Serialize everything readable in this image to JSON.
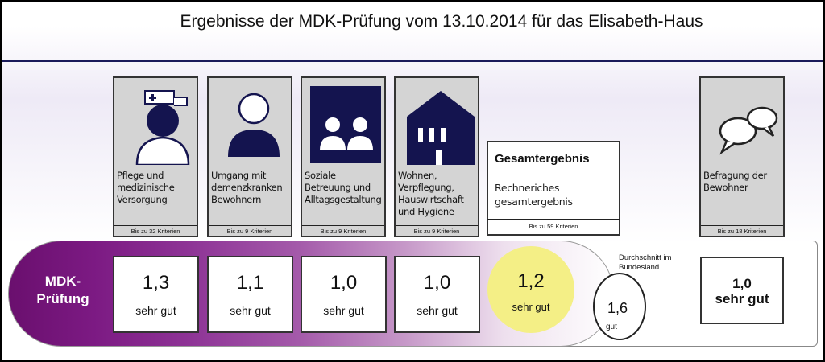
{
  "title": "Ergebnisse der MDK-Prüfung vom 13.10.2014 für das Elisabeth-Haus",
  "band_label": "MDK-\nPrüfung",
  "categories": [
    {
      "label": "Pflege und medizinische Versorgung",
      "criteria": "Bis zu 32 Kriterien",
      "icon": "nurse-icon",
      "score": "1,3",
      "grade": "sehr gut"
    },
    {
      "label": "Umgang mit demenzkranken Bewohnern",
      "criteria": "Bis zu 9 Kriterien",
      "icon": "person-icon",
      "score": "1,1",
      "grade": "sehr gut"
    },
    {
      "label": "Soziale Betreuung und Alltagsgestaltung",
      "criteria": "Bis zu 9 Kriterien",
      "icon": "two-people-icon",
      "score": "1,0",
      "grade": "sehr gut"
    },
    {
      "label": "Wohnen, Verpflegung, Hauswirtschaft und Hygiene",
      "criteria": "Bis zu 9 Kriterien",
      "icon": "house-icon",
      "score": "1,0",
      "grade": "sehr gut"
    }
  ],
  "total": {
    "title": "Gesamtergebnis",
    "subtitle": "Rechneriches gesamtergebnis",
    "criteria": "Bis zu 59 Kriterien",
    "score": "1,2",
    "grade": "sehr gut"
  },
  "average": {
    "note": "Durchschnitt im Bundesland",
    "score": "1,6",
    "grade": "gut"
  },
  "survey": {
    "label": "Befragung der Bewohner",
    "criteria": "Bis zu 18 Kriterien",
    "icon": "speech-bubbles-icon",
    "score": "1,0",
    "grade": "sehr gut"
  },
  "colors": {
    "band_start": "#6a0f6e",
    "icon_navy": "#14144f",
    "highlight": "#f4ef86"
  }
}
